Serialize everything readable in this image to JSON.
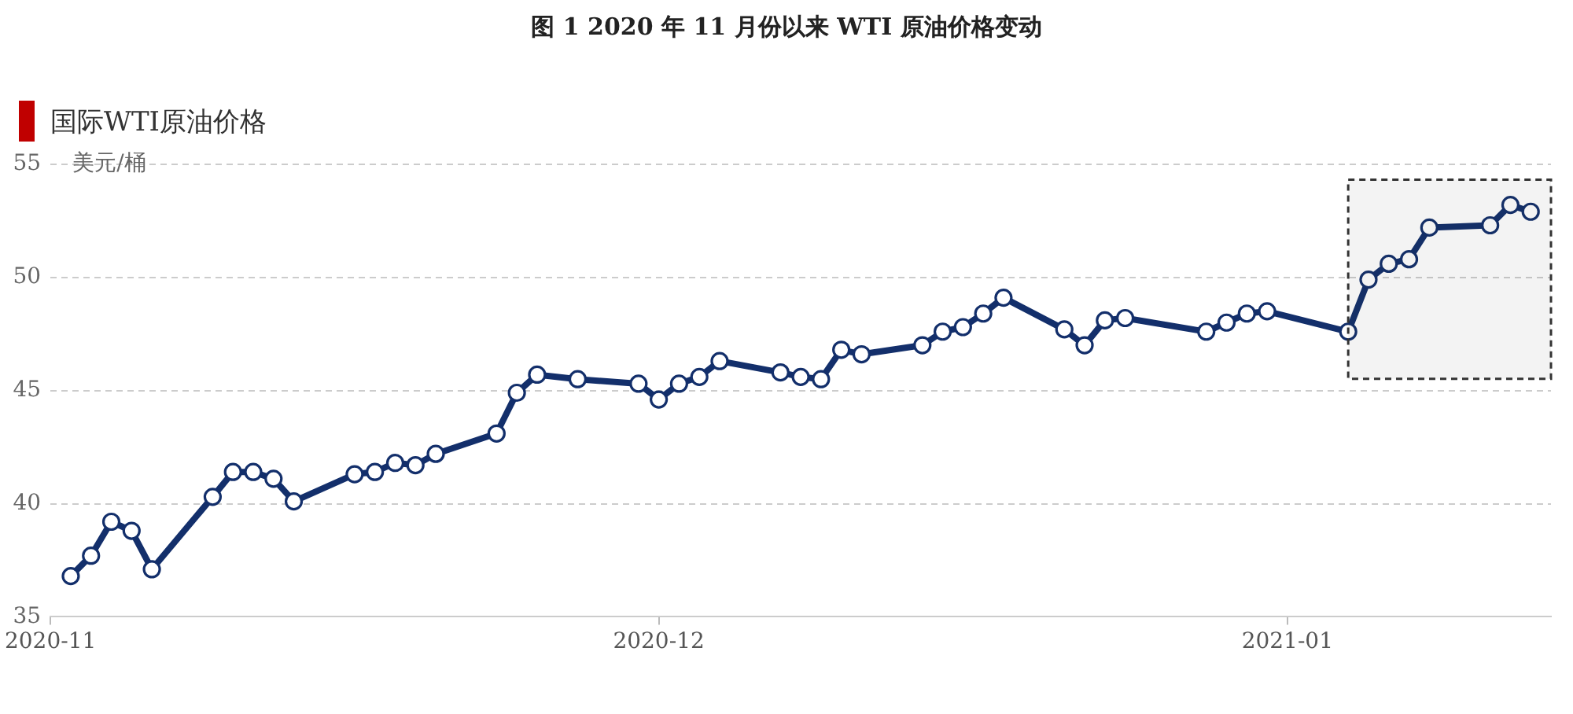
{
  "chart_data": {
    "type": "line",
    "title": "图 1 2020 年 11 月份以来 WTI 原油价格变动",
    "subtitle": "国际WTI原油价格",
    "ylabel": "美元/桶",
    "x": [
      "2020-11-02",
      "2020-11-03",
      "2020-11-04",
      "2020-11-05",
      "2020-11-06",
      "2020-11-09",
      "2020-11-10",
      "2020-11-11",
      "2020-11-12",
      "2020-11-13",
      "2020-11-16",
      "2020-11-17",
      "2020-11-18",
      "2020-11-19",
      "2020-11-20",
      "2020-11-23",
      "2020-11-24",
      "2020-11-25",
      "2020-11-27",
      "2020-11-30",
      "2020-12-01",
      "2020-12-02",
      "2020-12-03",
      "2020-12-04",
      "2020-12-07",
      "2020-12-08",
      "2020-12-09",
      "2020-12-10",
      "2020-12-11",
      "2020-12-14",
      "2020-12-15",
      "2020-12-16",
      "2020-12-17",
      "2020-12-18",
      "2020-12-21",
      "2020-12-22",
      "2020-12-23",
      "2020-12-24",
      "2020-12-28",
      "2020-12-29",
      "2020-12-30",
      "2020-12-31",
      "2021-01-04",
      "2021-01-05",
      "2021-01-06",
      "2021-01-07",
      "2021-01-08",
      "2021-01-11",
      "2021-01-12",
      "2021-01-13"
    ],
    "series": [
      {
        "color": "#132f6b",
        "values": [
          36.8,
          37.7,
          39.2,
          38.8,
          37.1,
          40.3,
          41.4,
          41.4,
          41.1,
          40.1,
          41.3,
          41.4,
          41.8,
          41.7,
          42.2,
          43.1,
          44.9,
          45.7,
          45.5,
          45.3,
          44.6,
          45.3,
          45.6,
          46.3,
          45.8,
          45.6,
          45.5,
          46.8,
          46.6,
          47.0,
          47.6,
          47.8,
          48.4,
          49.1,
          47.7,
          47.0,
          48.1,
          48.2,
          47.6,
          48.0,
          48.4,
          48.5,
          47.6,
          49.9,
          50.6,
          50.8,
          52.2,
          52.3,
          53.2,
          52.9
        ]
      }
    ],
    "xlim": [
      "2020-11-01",
      "2021-01-14"
    ],
    "xticks": [
      "2020-11",
      "2020-12",
      "2021-01"
    ],
    "ylim": [
      35,
      55
    ],
    "yticks": [
      35,
      40,
      45,
      50,
      55
    ],
    "grid": "y",
    "legend": false,
    "marker": "circle",
    "line_style": "solid",
    "bands": [
      {
        "axis": "x",
        "from": "2021-01-04",
        "to": "2021-01-14",
        "color": "#333333"
      }
    ]
  }
}
